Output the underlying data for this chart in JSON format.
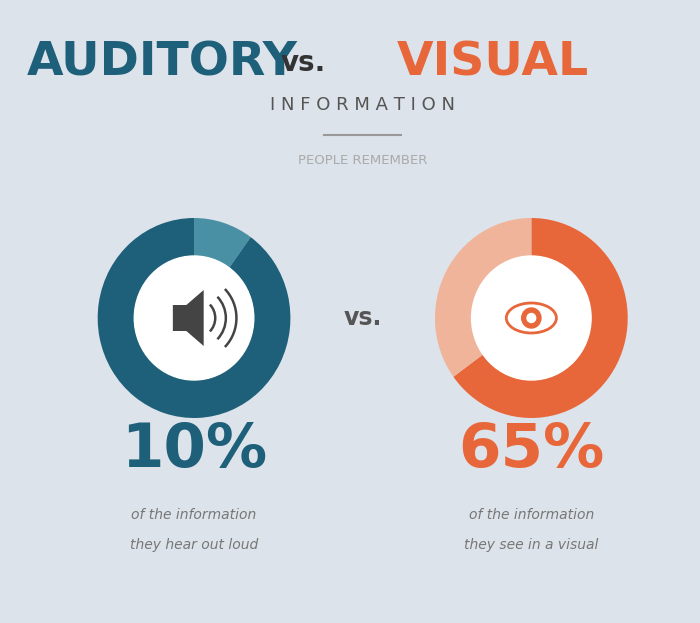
{
  "bg_color": "#dde3ea",
  "title_auditory": "AUDITORY",
  "title_vs": "vs.",
  "title_visual": "VISUAL",
  "subtitle": "I N F O R M A T I O N",
  "people_remember": "PEOPLE REMEMBER",
  "auditory_pct": 10,
  "visual_pct": 65,
  "auditory_color_main": "#1e6079",
  "auditory_color_light": "#4a90a4",
  "visual_color_main": "#e8673a",
  "visual_color_light": "#f0b49a",
  "auditory_label": "10%",
  "visual_label": "65%",
  "auditory_sub1": "of the information",
  "auditory_sub2": "they hear out loud",
  "visual_sub1": "of the information",
  "visual_sub2": "they see in a visual",
  "vs_text": "vs.",
  "title_auditory_color": "#1e5f7a",
  "title_vs_color": "#333333",
  "title_visual_color": "#e8673a",
  "subtitle_color": "#555555",
  "people_remember_color": "#aaaaaa",
  "divider_color": "#999999"
}
